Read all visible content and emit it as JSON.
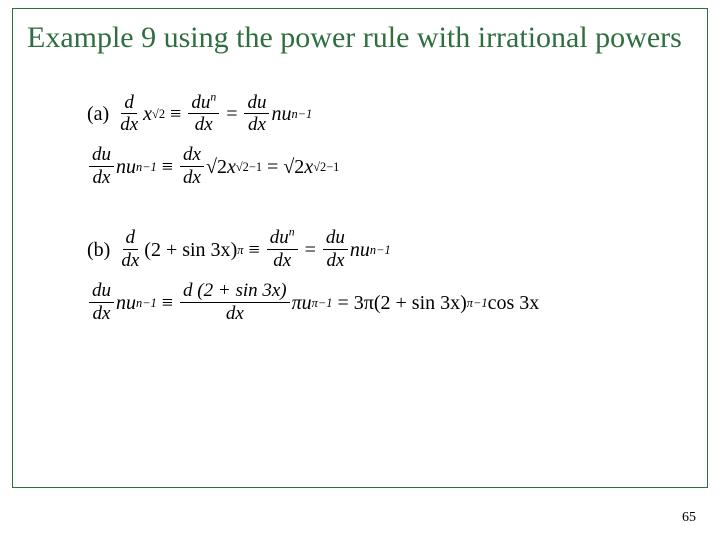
{
  "frame_border_color": "#2f6e3f",
  "title_color": "#2f6e3f",
  "title": "Example 9 using the power rule with irrational powers",
  "page_number": "65",
  "math": {
    "a": {
      "label": "(a)",
      "line1": {
        "lhs_num": "d",
        "lhs_den": "dx",
        "x": "x",
        "x_exp": "√2",
        "equiv": "≡",
        "mid_num": "du",
        "mid_num_exp": "n",
        "mid_den": "dx",
        "eq": "=",
        "rhs1_num": "du",
        "rhs1_den": "dx",
        "rhs2": "nu",
        "rhs2_exp": "n−1"
      },
      "line2": {
        "lhs1_num": "du",
        "lhs1_den": "dx",
        "lhs2": "nu",
        "lhs2_exp": "n−1",
        "equiv": "≡",
        "mid_num": "dx",
        "mid_den": "dx",
        "coef": "√2",
        "x": "x",
        "x_exp": "√2−1",
        "eq": "=",
        "rhs_coef": "√2",
        "rhs_x": "x",
        "rhs_exp": "√2−1"
      }
    },
    "b": {
      "label": "(b)",
      "line1": {
        "lhs_num": "d",
        "lhs_den": "dx",
        "base_open": "(",
        "base_inner": "2 + sin 3x",
        "base_close": ")",
        "base_exp": "π",
        "equiv": "≡",
        "mid_num": "du",
        "mid_num_exp": "n",
        "mid_den": "dx",
        "eq": "=",
        "rhs1_num": "du",
        "rhs1_den": "dx",
        "rhs2": "nu",
        "rhs2_exp": "n−1"
      },
      "line2": {
        "lhs1_num": "du",
        "lhs1_den": "dx",
        "lhs2": "nu",
        "lhs2_exp": "n−1",
        "equiv": "≡",
        "mid_num": "d (2 + sin 3x)",
        "mid_den": "dx",
        "pi_u": "πu",
        "pi_u_exp": "π−1",
        "eq": "=",
        "rhs_coef": "3π",
        "rhs_open": "(",
        "rhs_inner": "2 + sin 3x",
        "rhs_close": ")",
        "rhs_exp": "π−1",
        "rhs_tail": " cos 3x"
      }
    }
  }
}
